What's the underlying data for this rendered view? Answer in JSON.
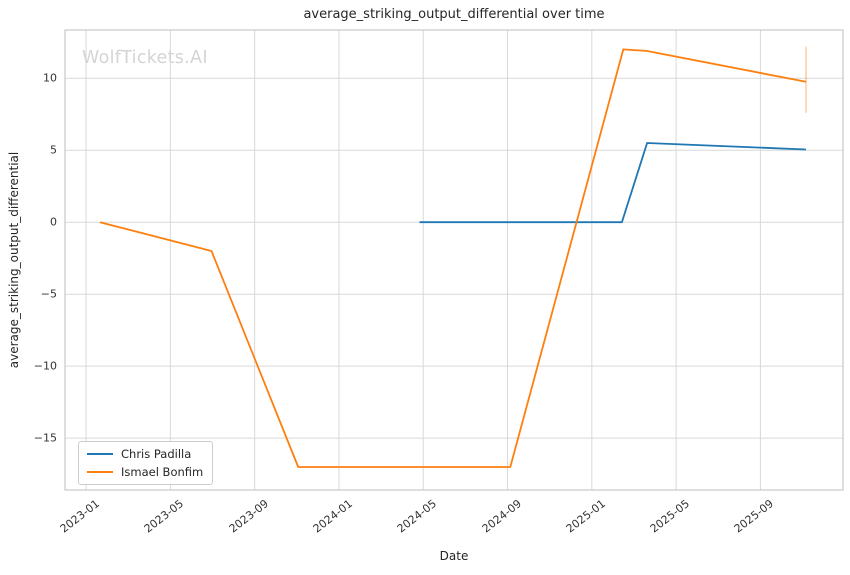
{
  "watermark": "WolfTickets.AI",
  "chart_data": {
    "type": "line",
    "title": "average_striking_output_differential over time",
    "xlabel": "Date",
    "ylabel": "average_striking_output_differential",
    "grid": true,
    "legend_position": "lower left",
    "x_tick_labels": [
      "2023-01",
      "2023-05",
      "2023-09",
      "2024-01",
      "2024-05",
      "2024-09",
      "2025-01",
      "2025-05",
      "2025-09"
    ],
    "y_tick_values": [
      10,
      5,
      0,
      -5,
      -10,
      -15
    ],
    "x_domain": [
      "2022-12-01",
      "2025-12-29"
    ],
    "y_domain": [
      -18.6,
      13.35
    ],
    "series": [
      {
        "name": "Chris Padilla",
        "color": "#1f77b4",
        "points": [
          [
            "2024-04-26",
            0.0
          ],
          [
            "2025-02-14",
            0.0
          ],
          [
            "2025-03-20",
            5.5
          ],
          [
            "2025-11-06",
            5.05
          ]
        ]
      },
      {
        "name": "Ismael Bonfim",
        "color": "#ff7f0e",
        "points": [
          [
            "2023-01-21",
            0.0
          ],
          [
            "2023-06-30",
            -2.0
          ],
          [
            "2023-11-03",
            -17.0
          ],
          [
            "2024-09-05",
            -17.0
          ],
          [
            "2025-02-16",
            12.0
          ],
          [
            "2025-03-19",
            11.9
          ],
          [
            "2025-11-06",
            9.75
          ]
        ],
        "error_bar": {
          "date": "2025-11-06",
          "low": 7.6,
          "high": 12.2,
          "color": "rgba(255,127,14,0.38)"
        }
      }
    ],
    "colors": {
      "grid": "#d9d9d9",
      "spine": "#c8c8c8",
      "text": "#262626",
      "tick_text": "#333333",
      "watermark": "#d4d4d4",
      "background": "#ffffff"
    }
  }
}
